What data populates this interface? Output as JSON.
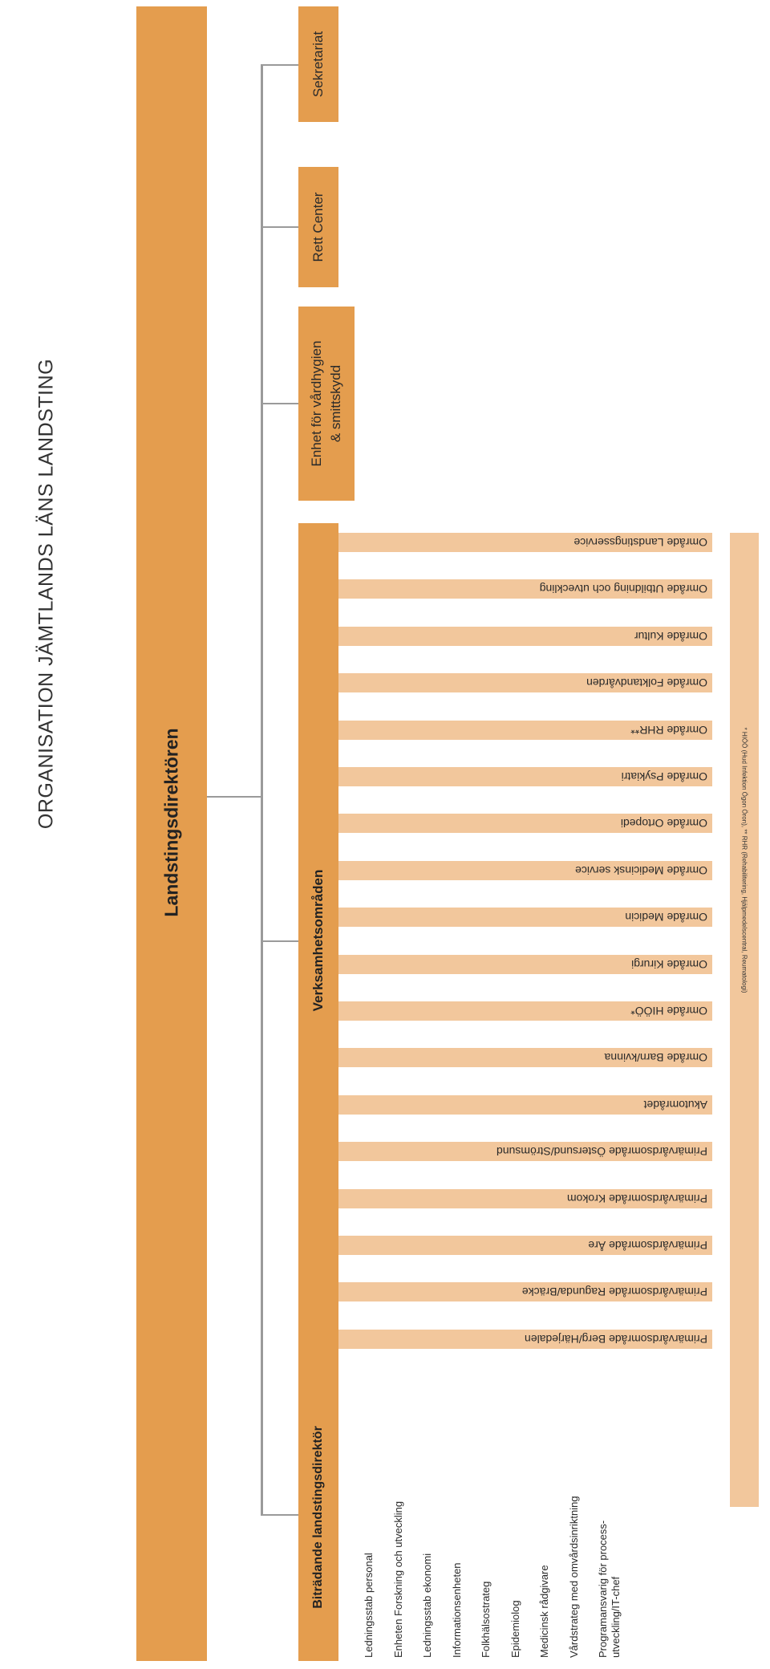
{
  "title": "ORGANISATION JÄMTLANDS LÄNS LANDSTING",
  "director": "Landstingsdirektören",
  "side_units": [
    "Sekretariat",
    "Rett Center",
    "Enhet för vårdhygien\n& smittskydd"
  ],
  "operations": {
    "header": "Verksamhetsområden",
    "areas": [
      "Område Landstingsservice",
      "Område Utbildning och utveckling",
      "Område Kultur",
      "Område Folktandvården",
      "Område RHR**",
      "Område Psykiatri",
      "Område Ortopedi",
      "Område Medicinsk service",
      "Område Medicin",
      "Område Kirurgi",
      "Område HIÖÖ*",
      "Område Barn/kvinna",
      "Akutområdet",
      "Primärvårdsområde Östersund/Strömsund",
      "Primärvårdsområde Krokom",
      "Primärvårdsområde Åre",
      "Primärvårdsområde Ragunda/Bräcke",
      "Primärvårdsområde Berg/Härjedalen"
    ],
    "footnote": "* HIÖÖ (Hud Infektion Ögon Öron), ** RHR (Rehabilitering, Hjälpmedelscentral, Reumatologi)"
  },
  "deputy": {
    "header": "Biträdande landstingsdirektör",
    "staff": [
      "Ledningsstab personal",
      "Enheten Forskning och utveckling",
      "Ledningsstab ekonomi",
      "Informationsenheten",
      "Folkhälsostrateg",
      "Epidemiolog",
      "Medicinsk rådgivare",
      "Vårdstrateg med omvårdsinriktning",
      "Programansvarig för process-\nutveckling/IT-chef"
    ]
  },
  "colors": {
    "dark_box": "#e49d4e",
    "light_box": "#f2c79c",
    "connector": "#9a9a9a"
  }
}
